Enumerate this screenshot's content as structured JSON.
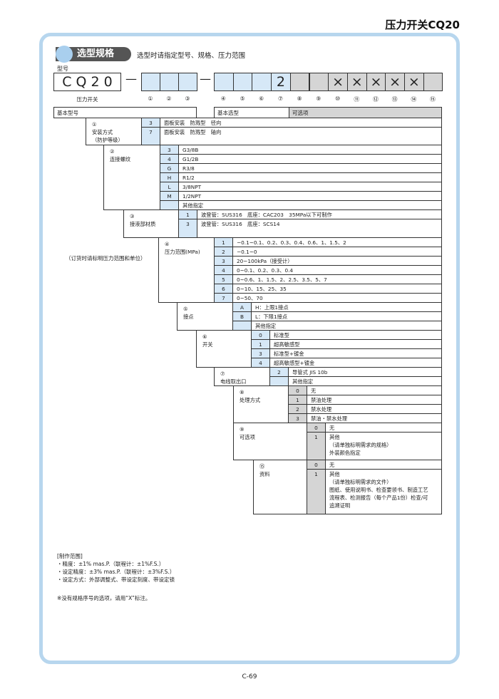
{
  "page_title": "压力开关CQ20",
  "section_badge": "选型规格",
  "section_subtitle": "选型时请指定型号、规格、压力范围",
  "model_label": "型号",
  "model_base": "C Q 2 0",
  "model_base_caption": "压力开关",
  "dash": "—",
  "slots": [
    {
      "num": "①",
      "value": "",
      "fill": "blue"
    },
    {
      "num": "②",
      "value": "",
      "fill": "blue"
    },
    {
      "num": "③",
      "value": "",
      "fill": "blue"
    },
    {
      "num": "④",
      "value": "",
      "fill": "blue"
    },
    {
      "num": "⑤",
      "value": "",
      "fill": "blue"
    },
    {
      "num": "⑥",
      "value": "",
      "fill": "blue"
    },
    {
      "num": "⑦",
      "value": "2",
      "fill": "blue"
    },
    {
      "num": "⑧",
      "value": "",
      "fill": "gray"
    },
    {
      "num": "⑨",
      "value": "",
      "fill": "gray"
    },
    {
      "num": "⑩",
      "value": "×",
      "fill": "gray"
    },
    {
      "num": "⑪",
      "value": "×",
      "fill": "gray"
    },
    {
      "num": "⑫",
      "value": "×",
      "fill": "gray"
    },
    {
      "num": "⑬",
      "value": "×",
      "fill": "gray"
    },
    {
      "num": "⑭",
      "value": "×",
      "fill": "gray"
    },
    {
      "num": "⑮",
      "value": "",
      "fill": "gray"
    }
  ],
  "headers": {
    "basic_model": "基本型号",
    "basic_selection": "基本选型",
    "options": "可选项"
  },
  "order_note": "（订货时请标明压力范围和单位）",
  "sections": [
    {
      "label": "①\n安装方式\n（防护等级）",
      "fill": "blue",
      "rows": [
        {
          "code": "3",
          "desc": "面板安装　防溅型　径向"
        },
        {
          "code": "7",
          "desc": "面板安装　防溅型　轴向"
        }
      ]
    },
    {
      "label": "②\n连接螺纹",
      "fill": "blue",
      "rows": [
        {
          "code": "3",
          "desc": "G3/8B"
        },
        {
          "code": "4",
          "desc": "G1/2B"
        },
        {
          "code": "G",
          "desc": "R3/8"
        },
        {
          "code": "H",
          "desc": "R1/2"
        },
        {
          "code": "L",
          "desc": "3/8NPT"
        },
        {
          "code": "M",
          "desc": "1/2NPT"
        },
        {
          "code": "",
          "desc": "其他指定"
        }
      ]
    },
    {
      "label": "③\n接液部材质",
      "fill": "blue",
      "rows": [
        {
          "code": "1",
          "desc": "波登管：SUS316　底座：CAC203　35MPa以下可制作"
        },
        {
          "code": "3",
          "desc": "波登管：SUS316　底座：SCS14"
        }
      ]
    },
    {
      "label": "④\n压力范围(MPa)",
      "fill": "blue",
      "rows": [
        {
          "code": "1",
          "desc": "−0.1~0.1、0.2、0.3、0.4、0.6、1、1.5、2"
        },
        {
          "code": "2",
          "desc": "−0.1~0"
        },
        {
          "code": "3",
          "desc": "20~100kPa（接受计）"
        },
        {
          "code": "4",
          "desc": "0~0.1、0.2、0.3、0.4"
        },
        {
          "code": "5",
          "desc": "0~0.6、1、1.5、2、2.5、3.5、5、7"
        },
        {
          "code": "6",
          "desc": "0~10、15、25、35"
        },
        {
          "code": "7",
          "desc": "0~50、70"
        }
      ]
    },
    {
      "label": "⑤\n接点",
      "fill": "blue",
      "rows": [
        {
          "code": "A",
          "desc": "H：上限1接点"
        },
        {
          "code": "B",
          "desc": "L：下限1接点"
        },
        {
          "code": "",
          "desc": "其他指定"
        }
      ]
    },
    {
      "label": "⑥\n开关",
      "fill": "blue",
      "rows": [
        {
          "code": "0",
          "desc": "标准型"
        },
        {
          "code": "1",
          "desc": "超高敏感型"
        },
        {
          "code": "3",
          "desc": "标准型+镀金"
        },
        {
          "code": "4",
          "desc": "超高敏感型+镀金"
        }
      ]
    },
    {
      "label": "⑦\n电线取出口",
      "fill": "blue",
      "rows": [
        {
          "code": "2",
          "desc": "导管式  JIS 10b"
        },
        {
          "code": "",
          "desc": "其他指定"
        }
      ]
    },
    {
      "label": "⑧\n处理方式",
      "fill": "gray",
      "rows": [
        {
          "code": "0",
          "desc": "无"
        },
        {
          "code": "1",
          "desc": "禁油处理"
        },
        {
          "code": "2",
          "desc": "禁水处理"
        },
        {
          "code": "3",
          "desc": "禁油・禁水处理"
        }
      ]
    },
    {
      "label": "⑨\n可选项",
      "fill": "gray",
      "rows": [
        {
          "code": "0",
          "desc": "无"
        },
        {
          "code": "1",
          "desc": "其他\n（请单独标明需求的规格）\n外装颜色指定"
        }
      ]
    },
    {
      "label": "⑮\n资料",
      "fill": "gray",
      "rows": [
        {
          "code": "0",
          "desc": "无"
        },
        {
          "code": "1",
          "desc": "其他\n（请单独标明需求的文件）\n图纸、使用说明书、检查要领书、制造工艺\n流程表、检测报告（每个产品1份）检查/可\n追溯证明"
        }
      ]
    }
  ],
  "notes": {
    "heading": "[制作范围]",
    "items": [
      "・精度：±1% mas.P.（联程计：±1%F.S.）",
      "・设定精度：±3% mas.P.（联程计：±3%F.S.）",
      "・设定方式：外部调整式、带设定刻度、带设定锁"
    ],
    "remark": "※没有规格序号的选项，请用“X”标注。"
  },
  "page_number": "C-69"
}
